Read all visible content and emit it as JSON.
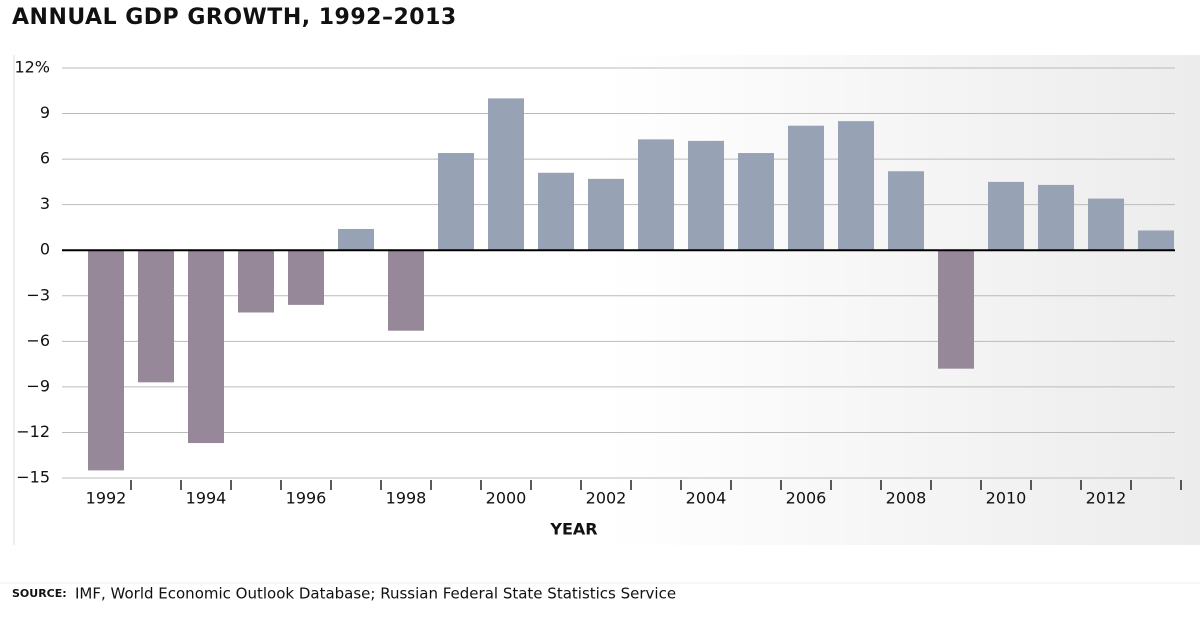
{
  "chart_data": {
    "type": "bar",
    "title": "ANNUAL GDP GROWTH, 1992–2013",
    "x_label": "YEAR",
    "source_label": "SOURCE:",
    "source": "IMF, World Economic Outlook Database; Russian Federal State Statistics Service",
    "categories": [
      "1992",
      null,
      "1994",
      null,
      "1996",
      null,
      "1998",
      null,
      "2000",
      null,
      "2002",
      null,
      "2004",
      null,
      "2006",
      null,
      "2008",
      null,
      "2010",
      null,
      "2012",
      null
    ],
    "values": [
      -14.5,
      -8.7,
      -12.7,
      -4.1,
      -3.6,
      1.4,
      -5.3,
      6.4,
      10.0,
      5.1,
      4.7,
      7.3,
      7.2,
      6.4,
      8.2,
      8.5,
      5.2,
      -7.8,
      4.5,
      4.3,
      3.4,
      1.3
    ],
    "color": "#97a3b5",
    "negative_color": "#978899",
    "ylim": [
      -15,
      12
    ],
    "yticks": [
      {
        "value": -15,
        "label": "−15"
      },
      {
        "value": -12,
        "label": "−12"
      },
      {
        "value": -9,
        "label": "−9"
      },
      {
        "value": -6,
        "label": "−6"
      },
      {
        "value": -3,
        "label": "−3"
      },
      0,
      3,
      6,
      9,
      {
        "value": 12,
        "label": "12%"
      }
    ],
    "grid": true
  }
}
